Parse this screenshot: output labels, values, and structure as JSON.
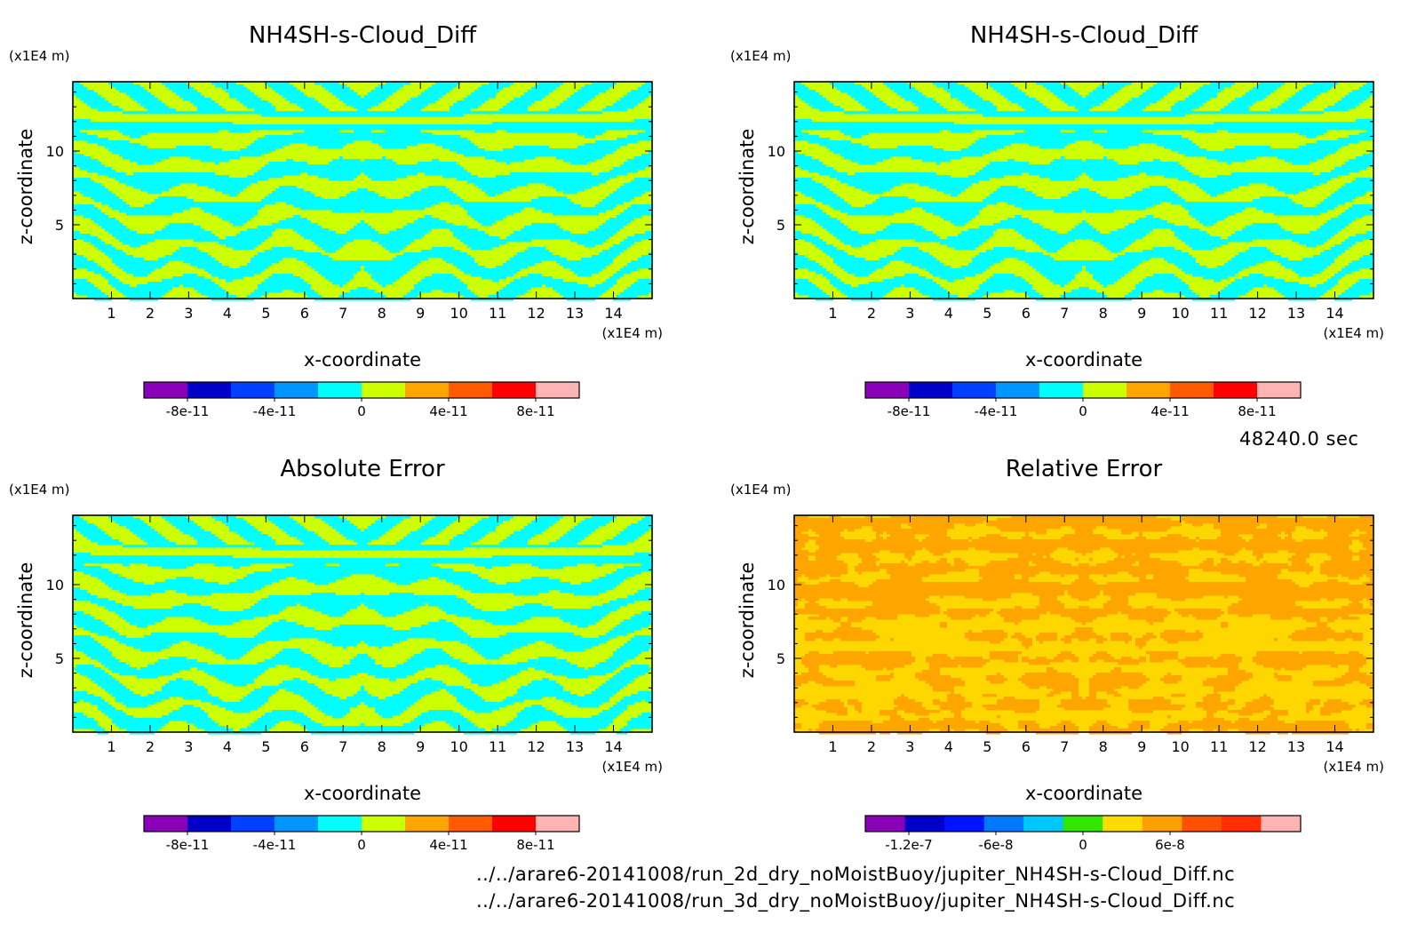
{
  "time_label": "48240.0 sec",
  "files": [
    "../../arare6-20141008/run_2d_dry_noMoistBuoy/jupiter_NH4SH-s-Cloud_Diff.nc",
    "../../arare6-20141008/run_3d_dry_noMoistBuoy/jupiter_NH4SH-s-Cloud_Diff.nc"
  ],
  "chart_data": [
    {
      "type": "heatmap",
      "title": "NH4SH-s-Cloud_Diff",
      "xlabel": "x-coordinate",
      "ylabel": "z-coordinate",
      "x_unit": "(x1E4 m)",
      "z_unit": "(x1E4 m)",
      "xlim": [
        0,
        15
      ],
      "ylim": [
        0,
        14.7
      ],
      "xticks": [
        1,
        2,
        3,
        4,
        5,
        6,
        7,
        8,
        9,
        10,
        11,
        12,
        13,
        14
      ],
      "yticks": [
        5,
        10
      ],
      "pattern": "banded",
      "field_colors": [
        "#00ffff",
        "#ccff00"
      ],
      "colorbar": {
        "colors": [
          "#8b00b9",
          "#0000c8",
          "#0040ff",
          "#0096ff",
          "#00ffff",
          "#ccff00",
          "#ffa500",
          "#ff5a00",
          "#ff0000",
          "#ffb4b4"
        ],
        "ticks": [
          -8e-11,
          -4e-11,
          0,
          4e-11,
          8e-11
        ],
        "tick_labels": [
          "-8e-11",
          "-4e-11",
          "0",
          "4e-11",
          "8e-11"
        ],
        "range": [
          -1e-10,
          1e-10
        ]
      }
    },
    {
      "type": "heatmap",
      "title": "NH4SH-s-Cloud_Diff",
      "xlabel": "x-coordinate",
      "ylabel": "z-coordinate",
      "x_unit": "(x1E4 m)",
      "z_unit": "(x1E4 m)",
      "xlim": [
        0,
        15
      ],
      "ylim": [
        0,
        14.7
      ],
      "xticks": [
        1,
        2,
        3,
        4,
        5,
        6,
        7,
        8,
        9,
        10,
        11,
        12,
        13,
        14
      ],
      "yticks": [
        5,
        10
      ],
      "pattern": "banded",
      "field_colors": [
        "#00ffff",
        "#ccff00"
      ],
      "colorbar": {
        "colors": [
          "#8b00b9",
          "#0000c8",
          "#0040ff",
          "#0096ff",
          "#00ffff",
          "#ccff00",
          "#ffa500",
          "#ff5a00",
          "#ff0000",
          "#ffb4b4"
        ],
        "ticks": [
          -8e-11,
          -4e-11,
          0,
          4e-11,
          8e-11
        ],
        "tick_labels": [
          "-8e-11",
          "-4e-11",
          "0",
          "4e-11",
          "8e-11"
        ],
        "range": [
          -1e-10,
          1e-10
        ]
      }
    },
    {
      "type": "heatmap",
      "title": "Absolute Error",
      "xlabel": "x-coordinate",
      "ylabel": "z-coordinate",
      "x_unit": "(x1E4 m)",
      "z_unit": "(x1E4 m)",
      "xlim": [
        0,
        15
      ],
      "ylim": [
        0,
        14.7
      ],
      "xticks": [
        1,
        2,
        3,
        4,
        5,
        6,
        7,
        8,
        9,
        10,
        11,
        12,
        13,
        14
      ],
      "yticks": [
        5,
        10
      ],
      "pattern": "banded-alt",
      "field_colors": [
        "#00ffff",
        "#ccff00"
      ],
      "colorbar": {
        "colors": [
          "#8b00b9",
          "#0000c8",
          "#0040ff",
          "#0096ff",
          "#00ffff",
          "#ccff00",
          "#ffa500",
          "#ff5a00",
          "#ff0000",
          "#ffb4b4"
        ],
        "ticks": [
          -8e-11,
          -4e-11,
          0,
          4e-11,
          8e-11
        ],
        "tick_labels": [
          "-8e-11",
          "-4e-11",
          "0",
          "4e-11",
          "8e-11"
        ],
        "range": [
          -1e-10,
          1e-10
        ]
      }
    },
    {
      "type": "heatmap",
      "title": "Relative Error",
      "xlabel": "x-coordinate",
      "ylabel": "z-coordinate",
      "x_unit": "(x1E4 m)",
      "z_unit": "(x1E4 m)",
      "xlim": [
        0,
        15
      ],
      "ylim": [
        0,
        14.7
      ],
      "xticks": [
        1,
        2,
        3,
        4,
        5,
        6,
        7,
        8,
        9,
        10,
        11,
        12,
        13,
        14
      ],
      "yticks": [
        5,
        10
      ],
      "pattern": "patchy",
      "field_colors": [
        "#ffa500",
        "#ffd700"
      ],
      "colorbar": {
        "colors": [
          "#8b00b9",
          "#0000c8",
          "#0014ff",
          "#0078ff",
          "#00c8ff",
          "#32e600",
          "#ffdc00",
          "#ffa000",
          "#ff5000",
          "#ff2d00",
          "#ffb4b4"
        ],
        "ticks": [
          -1.2e-07,
          -6e-08,
          0,
          6e-08
        ],
        "tick_labels": [
          "-1.2e-7",
          "-6e-8",
          "0",
          "6e-8"
        ],
        "range": [
          -1.5e-07,
          1.5e-07
        ]
      }
    }
  ]
}
